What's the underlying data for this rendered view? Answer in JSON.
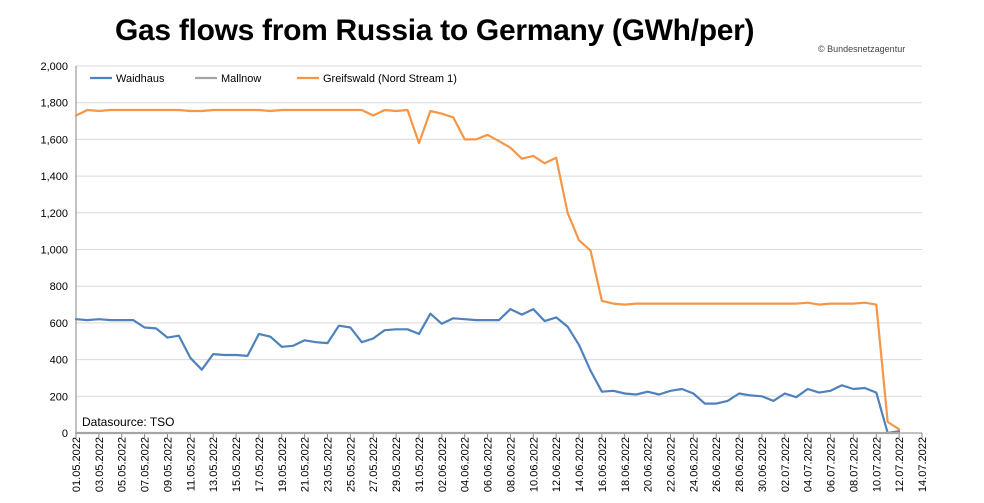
{
  "header": {
    "title": "Gas flows from Russia to Germany (GWh/per)",
    "credit": "© Bundesnetzagentur"
  },
  "chart_data": {
    "type": "line",
    "title": "Gas flows from Russia to Germany (GWh/per)",
    "source": "Datasource: TSO",
    "xlabel": "",
    "ylabel": "",
    "ylim": [
      0,
      2000
    ],
    "yticks": [
      "0",
      "200",
      "400",
      "600",
      "800",
      "1,000",
      "1,200",
      "1,400",
      "1,600",
      "1,800",
      "2,000"
    ],
    "grid": true,
    "legend": "top-left",
    "x_start": "01.05.2022",
    "x_labels": [
      "01.05.2022",
      "03.05.2022",
      "05.05.2022",
      "07.05.2022",
      "09.05.2022",
      "11.05.2022",
      "13.05.2022",
      "15.05.2022",
      "17.05.2022",
      "19.05.2022",
      "21.05.2022",
      "23.05.2022",
      "25.05.2022",
      "27.05.2022",
      "29.05.2022",
      "31.05.2022",
      "02.06.2022",
      "04.06.2022",
      "06.06.2022",
      "08.06.2022",
      "10.06.2022",
      "12.06.2022",
      "14.06.2022",
      "16.06.2022",
      "18.06.2022",
      "20.06.2022",
      "22.06.2022",
      "24.06.2022",
      "26.06.2022",
      "28.06.2022",
      "30.06.2022",
      "02.07.2022",
      "04.07.2022",
      "06.07.2022",
      "08.07.2022",
      "10.07.2022",
      "12.07.2022",
      "14.07.2022"
    ],
    "series": [
      {
        "name": "Waidhaus",
        "color": "#4f81bd",
        "values": [
          620,
          615,
          620,
          615,
          615,
          615,
          575,
          570,
          520,
          530,
          410,
          345,
          430,
          425,
          425,
          420,
          540,
          525,
          470,
          475,
          505,
          495,
          490,
          585,
          575,
          495,
          515,
          560,
          565,
          565,
          540,
          650,
          595,
          625,
          620,
          615,
          615,
          615,
          675,
          645,
          675,
          610,
          630,
          580,
          480,
          340,
          225,
          230,
          215,
          210,
          225,
          210,
          230,
          240,
          215,
          160,
          160,
          175,
          215,
          205,
          200,
          175,
          215,
          195,
          240,
          220,
          230,
          260,
          240,
          245,
          220,
          0,
          10
        ],
        "x_end_index": 72
      },
      {
        "name": "Mallnow",
        "color": "#a5a5a5",
        "values": [
          0,
          0,
          0,
          0,
          0,
          0,
          0,
          0,
          0,
          0,
          0,
          0,
          0,
          0,
          0,
          0,
          0,
          0,
          0,
          0,
          0,
          0,
          0,
          0,
          0,
          0,
          0,
          0,
          0,
          0,
          0,
          0,
          0,
          0,
          0,
          0,
          0,
          0,
          0,
          0,
          0,
          0,
          0,
          0,
          0,
          0,
          0,
          0,
          0,
          0,
          0,
          0,
          0,
          0,
          0,
          0,
          0,
          0,
          0,
          0,
          0,
          0,
          0,
          0,
          0,
          0,
          0,
          0,
          0,
          0,
          0,
          0,
          0
        ]
      },
      {
        "name": "Greifswald (Nord Stream 1)",
        "color": "#f79646",
        "values": [
          1730,
          1760,
          1755,
          1760,
          1760,
          1760,
          1760,
          1760,
          1760,
          1760,
          1755,
          1755,
          1760,
          1760,
          1760,
          1760,
          1760,
          1755,
          1760,
          1760,
          1760,
          1760,
          1760,
          1760,
          1760,
          1760,
          1730,
          1760,
          1755,
          1760,
          1580,
          1755,
          1740,
          1720,
          1600,
          1600,
          1625,
          1590,
          1555,
          1495,
          1510,
          1470,
          1500,
          1200,
          1050,
          995,
          720,
          705,
          700,
          705,
          705,
          705,
          705,
          705,
          705,
          705,
          705,
          705,
          705,
          705,
          705,
          705,
          705,
          705,
          710,
          700,
          705,
          705,
          705,
          710,
          700,
          60,
          20
        ]
      }
    ]
  }
}
